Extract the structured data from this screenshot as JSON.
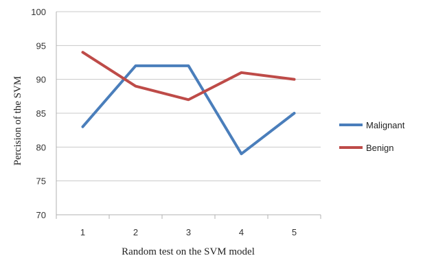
{
  "chart_data": {
    "type": "line",
    "x": [
      1,
      2,
      3,
      4,
      5
    ],
    "series": [
      {
        "name": "Malignant",
        "values": [
          83,
          92,
          92,
          79,
          85
        ],
        "color": "#4a7ebb"
      },
      {
        "name": "Benign",
        "values": [
          94,
          89,
          87,
          91,
          90
        ],
        "color": "#be4b48"
      }
    ],
    "xlabel": "Random test on the SVM model",
    "ylabel": "Percision of the SVM",
    "ylim": [
      70,
      100
    ],
    "yticks": [
      70,
      75,
      80,
      85,
      90,
      95,
      100
    ],
    "grid": true,
    "legend_position": "right"
  }
}
